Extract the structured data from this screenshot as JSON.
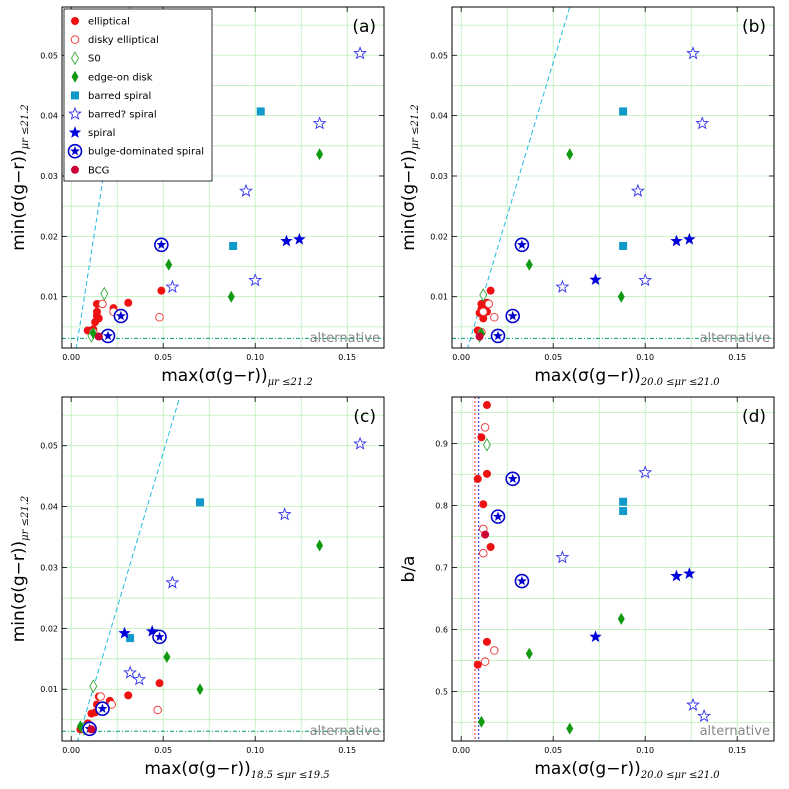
{
  "figure": {
    "legend": [
      {
        "key": "elliptical",
        "label": "elliptical"
      },
      {
        "key": "disky_elliptical",
        "label": "disky elliptical"
      },
      {
        "key": "S0",
        "label": "S0"
      },
      {
        "key": "edge_on_disk",
        "label": "edge-on disk"
      },
      {
        "key": "barred_spiral",
        "label": "barred spiral"
      },
      {
        "key": "barred_q_spiral",
        "label": "barred? spiral"
      },
      {
        "key": "spiral",
        "label": "spiral"
      },
      {
        "key": "bulge_spiral",
        "label": "bulge-dominated spiral"
      },
      {
        "key": "BCG",
        "label": "BCG"
      }
    ],
    "colors": {
      "elliptical": "#ee1111",
      "disky_elliptical": "#ee3333",
      "S0": "#33aa33",
      "edge_on_disk": "#119911",
      "barred_spiral": "#1199cc",
      "barred_q_spiral": "#3333ee",
      "spiral": "#0000dd",
      "bulge_spiral": "#0000cc",
      "BCG": "#cc0033",
      "cyan_line": "#22bbdd",
      "grid": "#bbeebb",
      "alt_line": "#009977"
    }
  },
  "chart_data": [
    {
      "type": "scatter",
      "panel_label": "(a)",
      "xlabel_main": "max(σ(g−r))",
      "xlabel_sub": "μr ≤21.2",
      "ylabel_main": "min(σ(g−r))",
      "ylabel_sub": "μr ≤21.2",
      "xlim": [
        -0.005,
        0.17
      ],
      "ylim": [
        0.0015,
        0.058
      ],
      "xticks": [
        "0.00",
        "0.05",
        "0.10",
        "0.15"
      ],
      "xtick_values": [
        0.0,
        0.05,
        0.1,
        0.15
      ],
      "yticks": [
        "0.01",
        "0.02",
        "0.03",
        "0.04",
        "0.05"
      ],
      "ytick_values": [
        0.01,
        0.02,
        0.03,
        0.04,
        0.05
      ],
      "annotation": "alternative",
      "alt_line_y": 0.0031,
      "cyan_line": [
        [
          0.002,
          0.0
        ],
        [
          0.032,
          0.058
        ]
      ],
      "points": [
        {
          "cat": "elliptical",
          "x": 0.009,
          "y": 0.0044
        },
        {
          "cat": "elliptical",
          "x": 0.012,
          "y": 0.0046
        },
        {
          "cat": "elliptical",
          "x": 0.013,
          "y": 0.0058
        },
        {
          "cat": "elliptical",
          "x": 0.014,
          "y": 0.0068
        },
        {
          "cat": "elliptical",
          "x": 0.014,
          "y": 0.0075
        },
        {
          "cat": "elliptical",
          "x": 0.014,
          "y": 0.0088
        },
        {
          "cat": "elliptical",
          "x": 0.015,
          "y": 0.0064
        },
        {
          "cat": "elliptical",
          "x": 0.023,
          "y": 0.0081
        },
        {
          "cat": "elliptical",
          "x": 0.031,
          "y": 0.009
        },
        {
          "cat": "elliptical",
          "x": 0.049,
          "y": 0.011
        },
        {
          "cat": "disky_elliptical",
          "x": 0.012,
          "y": 0.0041
        },
        {
          "cat": "disky_elliptical",
          "x": 0.017,
          "y": 0.0088
        },
        {
          "cat": "disky_elliptical",
          "x": 0.023,
          "y": 0.0075
        },
        {
          "cat": "disky_elliptical",
          "x": 0.048,
          "y": 0.0066
        },
        {
          "cat": "S0",
          "x": 0.011,
          "y": 0.0035
        },
        {
          "cat": "S0",
          "x": 0.018,
          "y": 0.0105
        },
        {
          "cat": "edge_on_disk",
          "x": 0.012,
          "y": 0.0039
        },
        {
          "cat": "edge_on_disk",
          "x": 0.053,
          "y": 0.0153
        },
        {
          "cat": "edge_on_disk",
          "x": 0.087,
          "y": 0.01
        },
        {
          "cat": "edge_on_disk",
          "x": 0.135,
          "y": 0.0336
        },
        {
          "cat": "barred_spiral",
          "x": 0.088,
          "y": 0.0184
        },
        {
          "cat": "barred_spiral",
          "x": 0.103,
          "y": 0.0407
        },
        {
          "cat": "barred_q_spiral",
          "x": 0.055,
          "y": 0.0116
        },
        {
          "cat": "barred_q_spiral",
          "x": 0.095,
          "y": 0.0275
        },
        {
          "cat": "barred_q_spiral",
          "x": 0.1,
          "y": 0.0127
        },
        {
          "cat": "barred_q_spiral",
          "x": 0.135,
          "y": 0.0387
        },
        {
          "cat": "barred_q_spiral",
          "x": 0.157,
          "y": 0.0503
        },
        {
          "cat": "spiral",
          "x": 0.117,
          "y": 0.0192
        },
        {
          "cat": "spiral",
          "x": 0.124,
          "y": 0.0195
        },
        {
          "cat": "bulge_spiral",
          "x": 0.02,
          "y": 0.0035
        },
        {
          "cat": "bulge_spiral",
          "x": 0.027,
          "y": 0.0068
        },
        {
          "cat": "bulge_spiral",
          "x": 0.049,
          "y": 0.0186
        },
        {
          "cat": "BCG",
          "x": 0.015,
          "y": 0.0034
        }
      ]
    },
    {
      "type": "scatter",
      "panel_label": "(b)",
      "xlabel_main": "max(σ(g−r))",
      "xlabel_sub": "20.0 ≤μr ≤21.0",
      "ylabel_main": "min(σ(g−r))",
      "ylabel_sub": "μr ≤21.2",
      "xlim": [
        -0.005,
        0.17
      ],
      "ylim": [
        0.0015,
        0.058
      ],
      "xticks": [
        "0.00",
        "0.05",
        "0.10",
        "0.15"
      ],
      "xtick_values": [
        0.0,
        0.05,
        0.1,
        0.15
      ],
      "yticks": [
        "0.01",
        "0.02",
        "0.03",
        "0.04",
        "0.05"
      ],
      "ytick_values": [
        0.01,
        0.02,
        0.03,
        0.04,
        0.05
      ],
      "annotation": "alternative",
      "alt_line_y": 0.0031,
      "cyan_line": [
        [
          0.002,
          0.0
        ],
        [
          0.059,
          0.058
        ]
      ],
      "points": [
        {
          "cat": "elliptical",
          "x": 0.009,
          "y": 0.0044
        },
        {
          "cat": "elliptical",
          "x": 0.01,
          "y": 0.0073
        },
        {
          "cat": "elliptical",
          "x": 0.011,
          "y": 0.008
        },
        {
          "cat": "elliptical",
          "x": 0.011,
          "y": 0.0088
        },
        {
          "cat": "elliptical",
          "x": 0.012,
          "y": 0.0064
        },
        {
          "cat": "elliptical",
          "x": 0.013,
          "y": 0.0081
        },
        {
          "cat": "elliptical",
          "x": 0.014,
          "y": 0.0075
        },
        {
          "cat": "elliptical",
          "x": 0.014,
          "y": 0.009
        },
        {
          "cat": "elliptical",
          "x": 0.016,
          "y": 0.011
        },
        {
          "cat": "disky_elliptical",
          "x": 0.011,
          "y": 0.0041
        },
        {
          "cat": "disky_elliptical",
          "x": 0.012,
          "y": 0.0075
        },
        {
          "cat": "disky_elliptical",
          "x": 0.015,
          "y": 0.0088
        },
        {
          "cat": "disky_elliptical",
          "x": 0.018,
          "y": 0.0066
        },
        {
          "cat": "S0",
          "x": 0.01,
          "y": 0.0035
        },
        {
          "cat": "S0",
          "x": 0.012,
          "y": 0.0103
        },
        {
          "cat": "edge_on_disk",
          "x": 0.011,
          "y": 0.0039
        },
        {
          "cat": "edge_on_disk",
          "x": 0.037,
          "y": 0.0153
        },
        {
          "cat": "edge_on_disk",
          "x": 0.059,
          "y": 0.0336
        },
        {
          "cat": "edge_on_disk",
          "x": 0.087,
          "y": 0.01
        },
        {
          "cat": "barred_spiral",
          "x": 0.088,
          "y": 0.0184
        },
        {
          "cat": "barred_spiral",
          "x": 0.088,
          "y": 0.0407
        },
        {
          "cat": "barred_q_spiral",
          "x": 0.055,
          "y": 0.0116
        },
        {
          "cat": "barred_q_spiral",
          "x": 0.096,
          "y": 0.0275
        },
        {
          "cat": "barred_q_spiral",
          "x": 0.1,
          "y": 0.0127
        },
        {
          "cat": "barred_q_spiral",
          "x": 0.126,
          "y": 0.0503
        },
        {
          "cat": "barred_q_spiral",
          "x": 0.131,
          "y": 0.0387
        },
        {
          "cat": "spiral",
          "x": 0.073,
          "y": 0.0128
        },
        {
          "cat": "spiral",
          "x": 0.117,
          "y": 0.0192
        },
        {
          "cat": "spiral",
          "x": 0.124,
          "y": 0.0195
        },
        {
          "cat": "bulge_spiral",
          "x": 0.02,
          "y": 0.0035
        },
        {
          "cat": "bulge_spiral",
          "x": 0.028,
          "y": 0.0068
        },
        {
          "cat": "bulge_spiral",
          "x": 0.033,
          "y": 0.0186
        },
        {
          "cat": "BCG",
          "x": 0.01,
          "y": 0.0034
        }
      ]
    },
    {
      "type": "scatter",
      "panel_label": "(c)",
      "xlabel_main": "max(σ(g−r))",
      "xlabel_sub": "18.5 ≤μr ≤19.5",
      "ylabel_main": "min(σ(g−r))",
      "ylabel_sub": "μr ≤21.2",
      "xlim": [
        -0.005,
        0.17
      ],
      "ylim": [
        0.0015,
        0.058
      ],
      "xticks": [
        "0.00",
        "0.05",
        "0.10",
        "0.15"
      ],
      "xtick_values": [
        0.0,
        0.05,
        0.1,
        0.15
      ],
      "yticks": [
        "0.01",
        "0.02",
        "0.03",
        "0.04",
        "0.05"
      ],
      "ytick_values": [
        0.01,
        0.02,
        0.03,
        0.04,
        0.05
      ],
      "annotation": "alternative",
      "alt_line_y": 0.0031,
      "cyan_line": [
        [
          0.002,
          0.0
        ],
        [
          0.059,
          0.058
        ]
      ],
      "points": [
        {
          "cat": "elliptical",
          "x": 0.005,
          "y": 0.0034
        },
        {
          "cat": "elliptical",
          "x": 0.009,
          "y": 0.0044
        },
        {
          "cat": "elliptical",
          "x": 0.011,
          "y": 0.006
        },
        {
          "cat": "elliptical",
          "x": 0.013,
          "y": 0.0062
        },
        {
          "cat": "elliptical",
          "x": 0.014,
          "y": 0.0075
        },
        {
          "cat": "elliptical",
          "x": 0.015,
          "y": 0.0088
        },
        {
          "cat": "elliptical",
          "x": 0.021,
          "y": 0.0081
        },
        {
          "cat": "elliptical",
          "x": 0.031,
          "y": 0.009
        },
        {
          "cat": "elliptical",
          "x": 0.048,
          "y": 0.011
        },
        {
          "cat": "disky_elliptical",
          "x": 0.01,
          "y": 0.0041
        },
        {
          "cat": "disky_elliptical",
          "x": 0.016,
          "y": 0.0088
        },
        {
          "cat": "disky_elliptical",
          "x": 0.022,
          "y": 0.0075
        },
        {
          "cat": "disky_elliptical",
          "x": 0.047,
          "y": 0.0066
        },
        {
          "cat": "S0",
          "x": 0.007,
          "y": 0.0035
        },
        {
          "cat": "S0",
          "x": 0.012,
          "y": 0.0105
        },
        {
          "cat": "edge_on_disk",
          "x": 0.005,
          "y": 0.0039
        },
        {
          "cat": "edge_on_disk",
          "x": 0.052,
          "y": 0.0153
        },
        {
          "cat": "edge_on_disk",
          "x": 0.07,
          "y": 0.01
        },
        {
          "cat": "edge_on_disk",
          "x": 0.135,
          "y": 0.0336
        },
        {
          "cat": "barred_spiral",
          "x": 0.032,
          "y": 0.0184
        },
        {
          "cat": "barred_spiral",
          "x": 0.07,
          "y": 0.0407
        },
        {
          "cat": "barred_q_spiral",
          "x": 0.032,
          "y": 0.0127
        },
        {
          "cat": "barred_q_spiral",
          "x": 0.037,
          "y": 0.0116
        },
        {
          "cat": "barred_q_spiral",
          "x": 0.055,
          "y": 0.0275
        },
        {
          "cat": "barred_q_spiral",
          "x": 0.116,
          "y": 0.0387
        },
        {
          "cat": "barred_q_spiral",
          "x": 0.157,
          "y": 0.0503
        },
        {
          "cat": "spiral",
          "x": 0.029,
          "y": 0.0192
        },
        {
          "cat": "spiral",
          "x": 0.044,
          "y": 0.0195
        },
        {
          "cat": "bulge_spiral",
          "x": 0.01,
          "y": 0.0035
        },
        {
          "cat": "bulge_spiral",
          "x": 0.017,
          "y": 0.0068
        },
        {
          "cat": "bulge_spiral",
          "x": 0.048,
          "y": 0.0186
        },
        {
          "cat": "BCG",
          "x": 0.011,
          "y": 0.0034
        }
      ]
    },
    {
      "type": "scatter",
      "panel_label": "(d)",
      "xlabel_main": "max(σ(g−r))",
      "xlabel_sub": "20.0 ≤μr ≤21.0",
      "ylabel_main": "b/a",
      "ylabel_sub": "",
      "xlim": [
        -0.005,
        0.17
      ],
      "ylim": [
        0.42,
        0.975
      ],
      "xticks": [
        "0.00",
        "0.05",
        "0.10",
        "0.15"
      ],
      "xtick_values": [
        0.0,
        0.05,
        0.1,
        0.15
      ],
      "yticks": [
        "0.5",
        "0.6",
        "0.7",
        "0.8",
        "0.9"
      ],
      "ytick_values": [
        0.5,
        0.6,
        0.7,
        0.8,
        0.9
      ],
      "annotation": "alternative",
      "vlines": [
        0.0075,
        0.0095
      ],
      "points": [
        {
          "cat": "elliptical",
          "x": 0.014,
          "y": 0.962
        },
        {
          "cat": "elliptical",
          "x": 0.011,
          "y": 0.91
        },
        {
          "cat": "elliptical",
          "x": 0.009,
          "y": 0.843
        },
        {
          "cat": "elliptical",
          "x": 0.014,
          "y": 0.851
        },
        {
          "cat": "elliptical",
          "x": 0.012,
          "y": 0.802
        },
        {
          "cat": "elliptical",
          "x": 0.016,
          "y": 0.733
        },
        {
          "cat": "elliptical",
          "x": 0.014,
          "y": 0.58
        },
        {
          "cat": "elliptical",
          "x": 0.009,
          "y": 0.543
        },
        {
          "cat": "disky_elliptical",
          "x": 0.013,
          "y": 0.926
        },
        {
          "cat": "disky_elliptical",
          "x": 0.012,
          "y": 0.762
        },
        {
          "cat": "disky_elliptical",
          "x": 0.012,
          "y": 0.723
        },
        {
          "cat": "disky_elliptical",
          "x": 0.018,
          "y": 0.566
        },
        {
          "cat": "disky_elliptical",
          "x": 0.013,
          "y": 0.548
        },
        {
          "cat": "S0",
          "x": 0.014,
          "y": 0.898
        },
        {
          "cat": "edge_on_disk",
          "x": 0.011,
          "y": 0.451
        },
        {
          "cat": "edge_on_disk",
          "x": 0.037,
          "y": 0.561
        },
        {
          "cat": "edge_on_disk",
          "x": 0.059,
          "y": 0.44
        },
        {
          "cat": "edge_on_disk",
          "x": 0.087,
          "y": 0.617
        },
        {
          "cat": "barred_spiral",
          "x": 0.088,
          "y": 0.806
        },
        {
          "cat": "barred_spiral",
          "x": 0.088,
          "y": 0.791
        },
        {
          "cat": "barred_q_spiral",
          "x": 0.055,
          "y": 0.716
        },
        {
          "cat": "barred_q_spiral",
          "x": 0.1,
          "y": 0.853
        },
        {
          "cat": "barred_q_spiral",
          "x": 0.126,
          "y": 0.478
        },
        {
          "cat": "barred_q_spiral",
          "x": 0.132,
          "y": 0.46
        },
        {
          "cat": "spiral",
          "x": 0.073,
          "y": 0.588
        },
        {
          "cat": "spiral",
          "x": 0.117,
          "y": 0.686
        },
        {
          "cat": "spiral",
          "x": 0.124,
          "y": 0.69
        },
        {
          "cat": "bulge_spiral",
          "x": 0.028,
          "y": 0.843
        },
        {
          "cat": "bulge_spiral",
          "x": 0.02,
          "y": 0.782
        },
        {
          "cat": "bulge_spiral",
          "x": 0.033,
          "y": 0.678
        },
        {
          "cat": "BCG",
          "x": 0.013,
          "y": 0.753
        }
      ]
    }
  ]
}
